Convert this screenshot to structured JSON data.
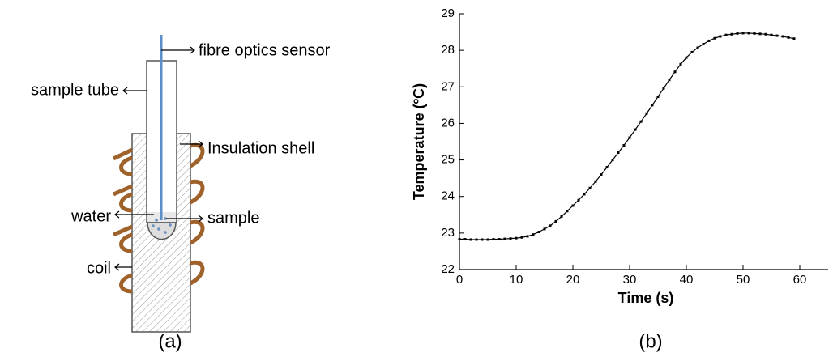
{
  "diagram": {
    "labels": {
      "sensor": "fibre optics sensor",
      "tube": "sample tube",
      "shell": "Insulation shell",
      "water": "water",
      "sample": "sample",
      "coil": "coil"
    },
    "caption": "(a)"
  },
  "chart_data": {
    "type": "line",
    "caption": "(b)",
    "x_label": "Time (s)",
    "y_label": "Temperature (ºC)",
    "x": [
      0,
      1,
      2,
      3,
      4,
      5,
      6,
      7,
      8,
      9,
      10,
      11,
      12,
      13,
      14,
      15,
      16,
      17,
      18,
      19,
      20,
      21,
      22,
      23,
      24,
      25,
      26,
      27,
      28,
      29,
      30,
      31,
      32,
      33,
      34,
      35,
      36,
      37,
      38,
      39,
      40,
      41,
      42,
      43,
      44,
      45,
      46,
      47,
      48,
      49,
      50,
      51,
      52,
      53,
      54,
      55,
      56,
      57,
      58,
      59
    ],
    "series": [
      {
        "color": "#000000",
        "values": [
          22.83,
          22.83,
          22.82,
          22.82,
          22.82,
          22.82,
          22.83,
          22.83,
          22.84,
          22.85,
          22.86,
          22.88,
          22.91,
          22.96,
          23.03,
          23.11,
          23.2,
          23.32,
          23.45,
          23.6,
          23.75,
          23.9,
          24.06,
          24.23,
          24.41,
          24.6,
          24.8,
          25.0,
          25.2,
          25.4,
          25.61,
          25.83,
          26.05,
          26.27,
          26.5,
          26.73,
          26.96,
          27.19,
          27.41,
          27.62,
          27.8,
          27.95,
          28.07,
          28.17,
          28.26,
          28.33,
          28.38,
          28.42,
          28.44,
          28.46,
          28.47,
          28.47,
          28.46,
          28.45,
          28.44,
          28.42,
          28.4,
          28.38,
          28.35,
          28.32
        ]
      }
    ],
    "xlim": [
      0,
      65
    ],
    "xticks": [
      0,
      10,
      20,
      30,
      40,
      50,
      60
    ],
    "ylim": [
      22,
      29
    ],
    "yticks": [
      22,
      23,
      24,
      25,
      26,
      27,
      28,
      29
    ]
  }
}
